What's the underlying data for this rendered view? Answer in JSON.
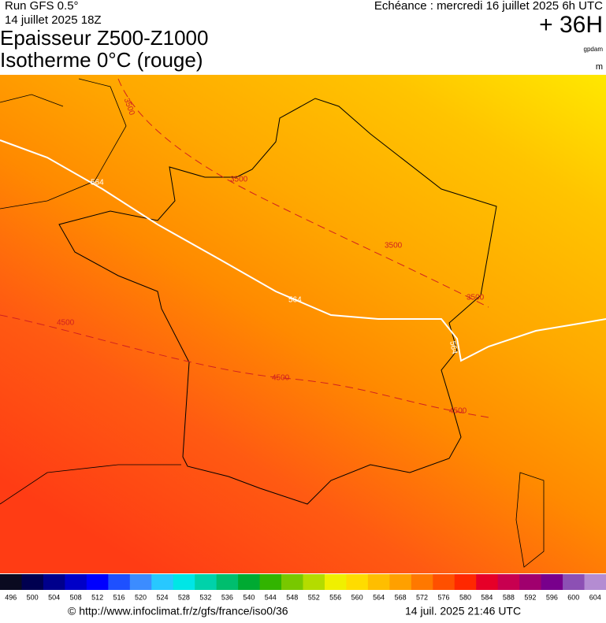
{
  "header": {
    "run": "Run GFS 0.5°",
    "run_date": "14 juillet 2025 18Z",
    "title_line1": "Epaisseur Z500-Z1000",
    "title_line2": "Isotherme 0°C (rouge)",
    "echeance": "Echéance : mercredi 16 juillet 2025 6h UTC",
    "lead": "+ 36H",
    "unit1": "gpdam",
    "unit2": "m"
  },
  "map": {
    "contour_labels": [
      "3500",
      "564",
      "3500",
      "3500",
      "3500",
      "4500",
      "564",
      "564",
      "4500",
      "4500"
    ]
  },
  "legend": {
    "ticks": [
      496,
      500,
      504,
      508,
      512,
      516,
      520,
      524,
      528,
      532,
      536,
      540,
      544,
      548,
      552,
      556,
      560,
      564,
      568,
      572,
      576,
      580,
      584,
      588,
      592,
      596,
      600,
      604
    ],
    "colors": [
      "#0a0a20",
      "#000050",
      "#00008c",
      "#0000c8",
      "#0000ff",
      "#1e50ff",
      "#3c8cff",
      "#28c8ff",
      "#00e6e6",
      "#00d2aa",
      "#00be6e",
      "#00aa32",
      "#32b400",
      "#78c800",
      "#b4dc00",
      "#f0f000",
      "#ffdc00",
      "#ffbe00",
      "#ffa000",
      "#ff7800",
      "#ff5000",
      "#ff2800",
      "#e60028",
      "#c80050",
      "#a0006e",
      "#78008c",
      "#8c50b4",
      "#b48cd2"
    ]
  },
  "footer": {
    "url": "© http://www.infoclimat.fr/z/gfs/france/iso0/36",
    "timestamp": "14 juil. 2025 21:46 UTC"
  }
}
